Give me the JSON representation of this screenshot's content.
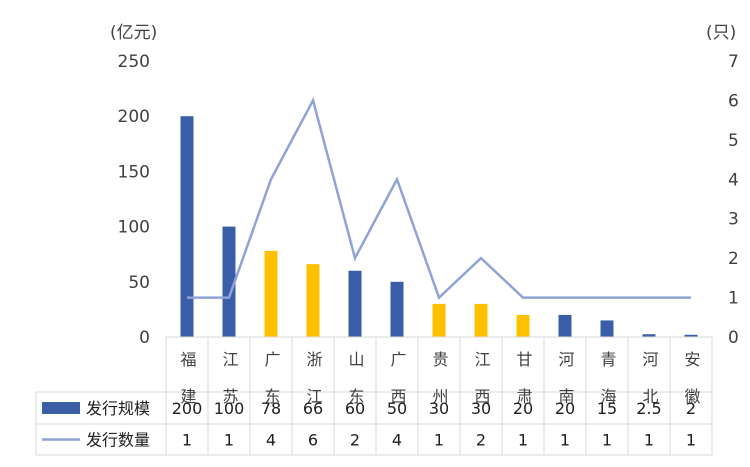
{
  "chart_data": {
    "type": "bar",
    "categories": [
      "福建",
      "江苏",
      "广东",
      "浙江",
      "山东",
      "广西",
      "贵州",
      "江西",
      "甘肃",
      "河南",
      "青海",
      "河北",
      "安徽"
    ],
    "series": [
      {
        "name": "发行规模",
        "type": "bar",
        "axis": "left",
        "values": [
          200,
          100,
          78,
          66,
          60,
          50,
          30,
          30,
          20,
          20,
          15,
          2.5,
          2
        ],
        "value_labels": [
          "200",
          "100",
          "78",
          "66",
          "60",
          "50",
          "30",
          "30",
          "20",
          "20",
          "15",
          "2.5",
          "2"
        ],
        "bar_colors": [
          "#3A5FA8",
          "#3A5FA8",
          "#FFC000",
          "#FFC000",
          "#3A5FA8",
          "#3A5FA8",
          "#FFC000",
          "#FFC000",
          "#FFC000",
          "#3A5FA8",
          "#3A5FA8",
          "#3A5FA8",
          "#3A5FA8"
        ]
      },
      {
        "name": "发行数量",
        "type": "line",
        "axis": "right",
        "values": [
          1,
          1,
          4,
          6,
          2,
          4,
          1,
          2,
          1,
          1,
          1,
          1,
          1
        ],
        "value_labels": [
          "1",
          "1",
          "4",
          "6",
          "2",
          "4",
          "1",
          "2",
          "1",
          "1",
          "1",
          "1",
          "1"
        ],
        "color": "#8FA3D6"
      }
    ],
    "y_left": {
      "unit": "(亿元)",
      "ylim": [
        0,
        250
      ],
      "ticks": [
        "0",
        "50",
        "100",
        "150",
        "200",
        "250"
      ]
    },
    "y_right": {
      "unit": "(只)",
      "ylim": [
        0,
        7
      ],
      "ticks": [
        "0",
        "1",
        "2",
        "3",
        "4",
        "5",
        "6",
        "7"
      ]
    },
    "legend_swatches": {
      "bar": "#3A5FA8",
      "line": "#8FA3D6"
    },
    "data_table": true,
    "grid": false
  }
}
